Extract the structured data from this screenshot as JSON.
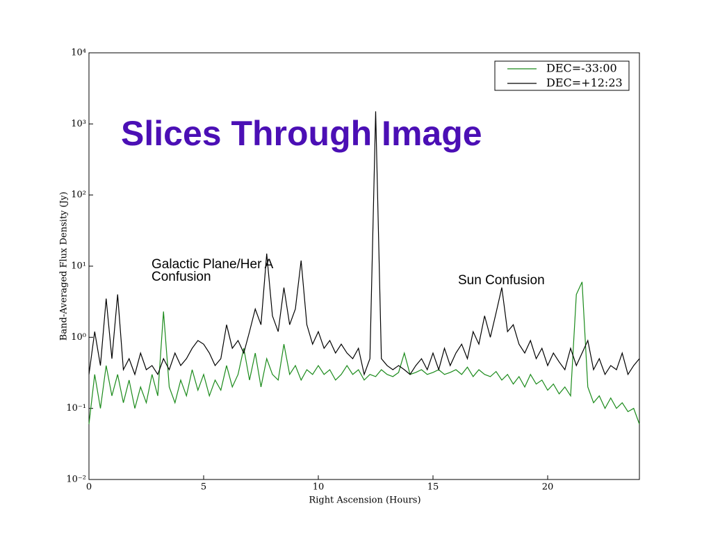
{
  "chart_data": {
    "type": "line",
    "title": "Slices Through Image",
    "xlabel": "Right Ascension (Hours)",
    "ylabel": "Band-Averaged Flux Density (Jy)",
    "annotations": [
      [
        "Galactic Plane/Her A",
        "Confusion"
      ],
      [
        "Sun Confusion"
      ]
    ],
    "x": [
      0,
      0.25,
      0.5,
      0.75,
      1,
      1.25,
      1.5,
      1.75,
      2,
      2.25,
      2.5,
      2.75,
      3,
      3.25,
      3.5,
      3.75,
      4,
      4.25,
      4.5,
      4.75,
      5,
      5.25,
      5.5,
      5.75,
      6,
      6.25,
      6.5,
      6.75,
      7,
      7.25,
      7.5,
      7.75,
      8,
      8.25,
      8.5,
      8.75,
      9,
      9.25,
      9.5,
      9.75,
      10,
      10.25,
      10.5,
      10.75,
      11,
      11.25,
      11.5,
      11.75,
      12,
      12.25,
      12.5,
      12.75,
      13,
      13.25,
      13.5,
      13.75,
      14,
      14.25,
      14.5,
      14.75,
      15,
      15.25,
      15.5,
      15.75,
      16,
      16.25,
      16.5,
      16.75,
      17,
      17.25,
      17.5,
      17.75,
      18,
      18.25,
      18.5,
      18.75,
      19,
      19.25,
      19.5,
      19.75,
      20,
      20.25,
      20.5,
      20.75,
      21,
      21.25,
      21.5,
      21.75,
      22,
      22.25,
      22.5,
      22.75,
      23,
      23.25,
      23.5,
      23.75,
      24
    ],
    "series": [
      {
        "name": "DEC=-33:00",
        "color": "#1a8a1a",
        "values": [
          0.06,
          0.3,
          0.1,
          0.4,
          0.15,
          0.3,
          0.12,
          0.25,
          0.1,
          0.2,
          0.12,
          0.3,
          0.15,
          2.3,
          0.2,
          0.12,
          0.25,
          0.15,
          0.35,
          0.18,
          0.3,
          0.15,
          0.25,
          0.18,
          0.4,
          0.2,
          0.3,
          0.7,
          0.25,
          0.6,
          0.2,
          0.5,
          0.3,
          0.25,
          0.8,
          0.3,
          0.4,
          0.25,
          0.35,
          0.3,
          0.4,
          0.3,
          0.35,
          0.25,
          0.3,
          0.4,
          0.3,
          0.35,
          0.25,
          0.3,
          0.28,
          0.35,
          0.3,
          0.28,
          0.32,
          0.6,
          0.3,
          0.32,
          0.35,
          0.3,
          0.32,
          0.35,
          0.3,
          0.32,
          0.35,
          0.3,
          0.38,
          0.28,
          0.35,
          0.3,
          0.28,
          0.33,
          0.25,
          0.3,
          0.22,
          0.28,
          0.2,
          0.3,
          0.22,
          0.25,
          0.18,
          0.22,
          0.16,
          0.2,
          0.15,
          4,
          6,
          0.2,
          0.12,
          0.15,
          0.1,
          0.14,
          0.1,
          0.12,
          0.09,
          0.1,
          0.06
        ]
      },
      {
        "name": "DEC=+12:23",
        "color": "#000000",
        "values": [
          0.3,
          1.2,
          0.4,
          3.5,
          0.5,
          4,
          0.35,
          0.5,
          0.3,
          0.6,
          0.35,
          0.4,
          0.3,
          0.5,
          0.35,
          0.6,
          0.4,
          0.5,
          0.7,
          0.9,
          0.8,
          0.6,
          0.4,
          0.5,
          1.5,
          0.7,
          0.9,
          0.6,
          1.2,
          2.5,
          1.5,
          15,
          2,
          1.2,
          5,
          1.5,
          2.5,
          12,
          1.5,
          0.8,
          1.2,
          0.7,
          0.9,
          0.6,
          0.8,
          0.6,
          0.5,
          0.7,
          0.3,
          0.5,
          1500,
          0.5,
          0.4,
          0.35,
          0.4,
          0.35,
          0.3,
          0.4,
          0.5,
          0.35,
          0.6,
          0.35,
          0.7,
          0.4,
          0.6,
          0.8,
          0.5,
          1.2,
          0.8,
          2,
          1,
          2.2,
          5,
          1.2,
          1.5,
          0.8,
          0.6,
          0.9,
          0.5,
          0.7,
          0.4,
          0.6,
          0.45,
          0.35,
          0.7,
          0.4,
          0.6,
          0.9,
          0.35,
          0.5,
          0.3,
          0.4,
          0.35,
          0.6,
          0.3,
          0.4,
          0.5
        ]
      }
    ],
    "xlim": [
      0,
      24
    ],
    "xticks": [
      0,
      5,
      10,
      15,
      20
    ],
    "ylim": [
      0.01,
      10000
    ],
    "yscale": "log",
    "yticks": [
      {
        "value": 0.01,
        "label": "10⁻²"
      },
      {
        "value": 0.1,
        "label": "10⁻¹"
      },
      {
        "value": 1,
        "label": "10⁰"
      },
      {
        "value": 10,
        "label": "10¹"
      },
      {
        "value": 100,
        "label": "10²"
      },
      {
        "value": 1000,
        "label": "10³"
      },
      {
        "value": 10000,
        "label": "10⁴"
      }
    ],
    "grid": false,
    "legend": "upper right"
  }
}
